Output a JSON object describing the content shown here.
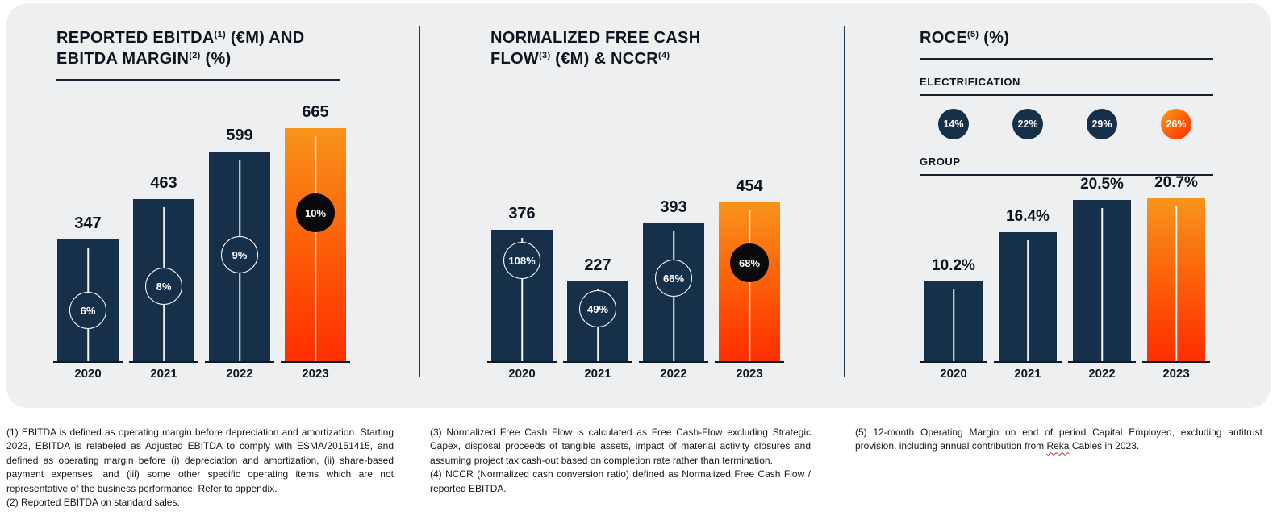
{
  "colors": {
    "card_background": "#edeff1",
    "bar_navy": "#16304a",
    "bar_orange_top": "#f8941c",
    "bar_orange_bottom": "#ff2e00",
    "badge_black": "#0a0a0c",
    "text_dark": "#0d1520"
  },
  "roce_panel": {
    "electrification_label": "ELECTRIFICATION",
    "group_label": "GROUP"
  },
  "chart_data": [
    {
      "id": "ebitda",
      "type": "bar",
      "title": "REPORTED EBITDA(1) (€M) AND EBITDA MARGIN(2) (%)",
      "title_lines": [
        [
          {
            "text": "REPORTED EBITDA"
          },
          {
            "text": "(1)",
            "sup": true
          },
          {
            "text": " (€M) AND"
          }
        ],
        [
          {
            "text": "EBITDA MARGIN"
          },
          {
            "text": "(2)",
            "sup": true
          },
          {
            "text": " (%)"
          }
        ]
      ],
      "categories": [
        "2020",
        "2021",
        "2022",
        "2023"
      ],
      "series": [
        {
          "name": "Reported EBITDA (€M)",
          "values": [
            347,
            463,
            599,
            665
          ],
          "labels": [
            "347",
            "463",
            "599",
            "665"
          ]
        },
        {
          "name": "EBITDA margin (%)",
          "values": [
            6,
            8,
            9,
            10
          ],
          "labels": [
            "6%",
            "8%",
            "9%",
            "10%"
          ]
        }
      ],
      "highlight_category": "2023",
      "highlight_index": 3,
      "ylim": [
        0,
        700
      ],
      "grid": false,
      "legend": false
    },
    {
      "id": "fcf",
      "type": "bar",
      "title": "NORMALIZED FREE CASH FLOW(3) (€M) & NCCR(4)",
      "title_lines": [
        [
          {
            "text": "NORMALIZED FREE CASH"
          }
        ],
        [
          {
            "text": "FLOW"
          },
          {
            "text": "(3)",
            "sup": true
          },
          {
            "text": " (€M) & NCCR"
          },
          {
            "text": "(4)",
            "sup": true
          }
        ]
      ],
      "categories": [
        "2020",
        "2021",
        "2022",
        "2023"
      ],
      "series": [
        {
          "name": "Normalized Free Cash Flow (€M)",
          "values": [
            376,
            227,
            393,
            454
          ],
          "labels": [
            "376",
            "227",
            "393",
            "454"
          ]
        },
        {
          "name": "NCCR (%)",
          "values": [
            108,
            49,
            66,
            68
          ],
          "labels": [
            "108%",
            "49%",
            "66%",
            "68%"
          ]
        }
      ],
      "highlight_category": "2023",
      "highlight_index": 3,
      "ylim": [
        0,
        700
      ],
      "grid": false,
      "legend": false
    },
    {
      "id": "roce",
      "type": "bar",
      "title": "ROCE(5) (%)",
      "title_lines": [
        [
          {
            "text": "ROCE"
          },
          {
            "text": "(5)",
            "sup": true
          },
          {
            "text": " (%)"
          }
        ]
      ],
      "categories": [
        "2020",
        "2021",
        "2022",
        "2023"
      ],
      "series": [
        {
          "name": "ELECTRIFICATION ROCE (%)",
          "values": [
            14,
            22,
            29,
            26
          ],
          "labels": [
            "14%",
            "22%",
            "29%",
            "26%"
          ]
        },
        {
          "name": "GROUP ROCE (%)",
          "values": [
            10.2,
            16.4,
            20.5,
            20.7
          ],
          "labels": [
            "10.2%",
            "16.4%",
            "20.5%",
            "20.7%"
          ]
        }
      ],
      "highlight_category": "2023",
      "highlight_index": 3,
      "ylim": [
        0,
        22
      ],
      "grid": false,
      "legend": false
    }
  ],
  "footnotes": {
    "column1": [
      {
        "parts": [
          {
            "text": "(1) EBITDA is defined as operating margin before depreciation and amortization. Starting 2023, EBITDA is relabeled as Adjusted EBITDA to comply with ESMA/20151415, and defined as operating margin before (i) depreciation and amortization, (ii) share-based payment expenses, and (iii) some other specific operating items which are not representative of the business performance. Refer to appendix."
          }
        ]
      },
      {
        "parts": [
          {
            "text": "(2) Reported EBITDA on standard sales."
          }
        ]
      }
    ],
    "column2": [
      {
        "parts": [
          {
            "text": "(3) Normalized Free Cash Flow is calculated as Free Cash-Flow excluding Strategic Capex, disposal proceeds of tangible assets, impact of material activity closures and assuming project tax cash-out based on completion rate rather than termination."
          }
        ]
      },
      {
        "parts": [
          {
            "text": "(4) NCCR (Normalized cash conversion ratio) defined as Normalized Free Cash Flow / reported EBITDA."
          }
        ]
      }
    ],
    "column3": [
      {
        "parts": [
          {
            "text": "(5) 12-month Operating Margin on end of period Capital Employed, excluding antitrust provision, including annual contribution from "
          },
          {
            "text": "Reka",
            "style": "spellcheck"
          },
          {
            "text": " Cables in 2023."
          }
        ]
      }
    ]
  }
}
